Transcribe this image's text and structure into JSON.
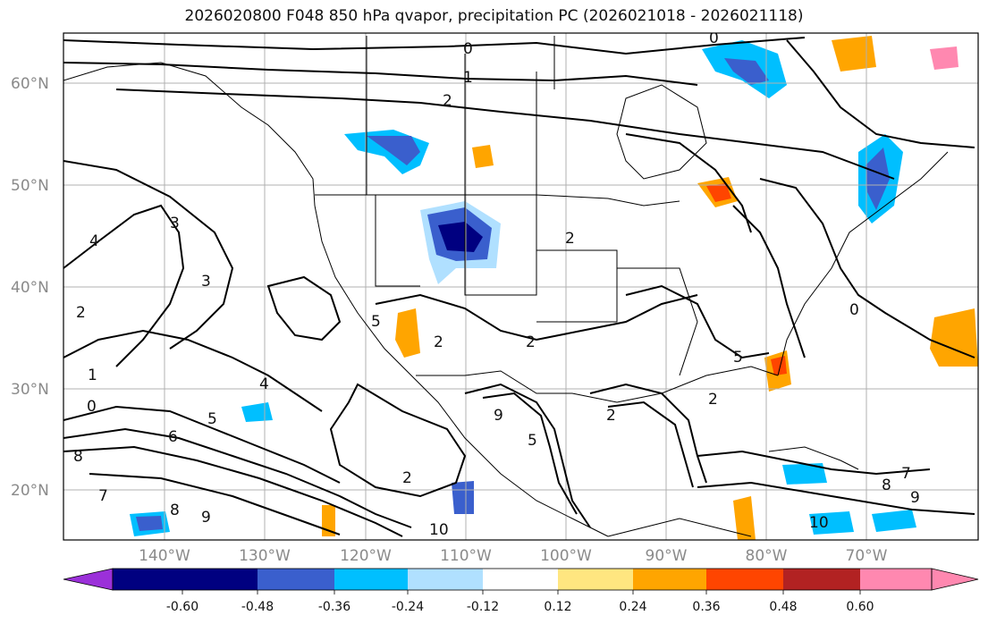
{
  "title": "2026020800 F048 850 hPa qvapor, precipitation PC (2026021018 - 2026021118)",
  "lat_labels": [
    "60°N",
    "50°N",
    "40°N",
    "30°N",
    "20°N"
  ],
  "lon_labels": [
    "140°W",
    "130°W",
    "120°W",
    "110°W",
    "100°W",
    "90°W",
    "80°W",
    "70°W"
  ],
  "colorbar": {
    "tick_labels": [
      "-0.60",
      "-0.48",
      "-0.36",
      "-0.24",
      "-0.12",
      "0.12",
      "0.24",
      "0.36",
      "0.48",
      "0.60"
    ],
    "colors": [
      "#9b30d9",
      "#000080",
      "#3a5fcd",
      "#00bfff",
      "#b0e0ff",
      "#ffffff",
      "#ffe680",
      "#ffa500",
      "#ff4500",
      "#b22222",
      "#ff88b0"
    ]
  },
  "contour_labels": [
    "0",
    "1",
    "2",
    "3",
    "4",
    "5",
    "6",
    "7",
    "8",
    "9",
    "10"
  ],
  "colors": {
    "contour": "#000000",
    "grid": "#b0b0b0",
    "border": "#000000"
  }
}
